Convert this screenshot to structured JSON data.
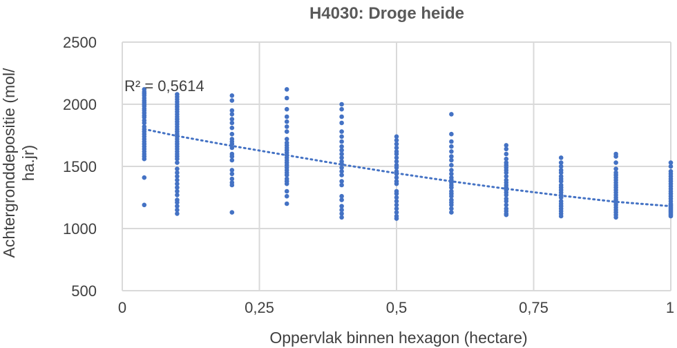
{
  "chart_data": {
    "type": "scatter",
    "title": "H4030: Droge heide",
    "xlabel": "Oppervlak binnen hexagon (hectare)",
    "ylabel_lines": [
      "Achtergronddepositie (mol/",
      "ha.jr)"
    ],
    "xlim": [
      0,
      1
    ],
    "ylim": [
      500,
      2500
    ],
    "x_ticks": [
      0,
      0.25,
      0.5,
      0.75,
      1
    ],
    "x_tick_labels": [
      "0",
      "0,25",
      "0,5",
      "0,75",
      "1"
    ],
    "y_ticks": [
      500,
      1000,
      1500,
      2000,
      2500
    ],
    "y_tick_labels": [
      "500",
      "1000",
      "1500",
      "2000",
      "2500"
    ],
    "grid": true,
    "r_squared_label": "R² = 0,5614",
    "trendline": {
      "x": [
        0.04,
        0.1,
        0.2,
        0.3,
        0.4,
        0.5,
        0.6,
        0.7,
        0.8,
        0.9,
        1.0
      ],
      "y": [
        1800,
        1745,
        1665,
        1590,
        1515,
        1445,
        1380,
        1320,
        1265,
        1215,
        1180
      ]
    },
    "series": [
      {
        "color": "#4472c4",
        "columns": [
          {
            "x": 0.04,
            "y": [
              2120,
              2100,
              2085,
              2070,
              2050,
              2030,
              2015,
              2000,
              1985,
              1965,
              1950,
              1930,
              1910,
              1895,
              1870,
              1850,
              1820,
              1800,
              1780,
              1760,
              1740,
              1720,
              1700,
              1680,
              1660,
              1640,
              1620,
              1600,
              1580,
              1560,
              1410,
              1190
            ]
          },
          {
            "x": 0.1,
            "y": [
              2080,
              2060,
              2040,
              2020,
              2000,
              1980,
              1960,
              1940,
              1920,
              1900,
              1880,
              1860,
              1840,
              1820,
              1800,
              1780,
              1760,
              1740,
              1720,
              1700,
              1680,
              1660,
              1640,
              1620,
              1600,
              1580,
              1560,
              1530,
              1480,
              1450,
              1420,
              1390,
              1360,
              1330,
              1300,
              1270,
              1230,
              1210,
              1180,
              1150,
              1120
            ]
          },
          {
            "x": 0.2,
            "y": [
              2070,
              2030,
              1950,
              1920,
              1880,
              1850,
              1810,
              1760,
              1720,
              1700,
              1680,
              1650,
              1600,
              1580,
              1550,
              1470,
              1440,
              1400,
              1370,
              1350,
              1130
            ]
          },
          {
            "x": 0.3,
            "y": [
              2120,
              2050,
              1960,
              1900,
              1860,
              1820,
              1780,
              1720,
              1690,
              1670,
              1650,
              1630,
              1610,
              1590,
              1570,
              1550,
              1530,
              1510,
              1490,
              1470,
              1450,
              1430,
              1400,
              1380,
              1360,
              1300,
              1260,
              1200
            ]
          },
          {
            "x": 0.4,
            "y": [
              2000,
              1960,
              1900,
              1850,
              1780,
              1740,
              1700,
              1660,
              1630,
              1600,
              1570,
              1540,
              1520,
              1490,
              1460,
              1430,
              1380,
              1350,
              1260,
              1230,
              1180,
              1150,
              1120,
              1090
            ]
          },
          {
            "x": 0.5,
            "y": [
              1740,
              1710,
              1680,
              1650,
              1620,
              1600,
              1570,
              1540,
              1510,
              1490,
              1460,
              1440,
              1410,
              1380,
              1360,
              1300,
              1280,
              1250,
              1220,
              1190,
              1160,
              1130,
              1100,
              1080
            ]
          },
          {
            "x": 0.6,
            "y": [
              1920,
              1760,
              1700,
              1660,
              1620,
              1580,
              1550,
              1510,
              1470,
              1440,
              1410,
              1390,
              1370,
              1350,
              1330,
              1300,
              1280,
              1260,
              1230,
              1210,
              1190,
              1160,
              1130
            ]
          },
          {
            "x": 0.7,
            "y": [
              1670,
              1640,
              1600,
              1560,
              1530,
              1510,
              1490,
              1470,
              1450,
              1420,
              1390,
              1370,
              1350,
              1330,
              1310,
              1290,
              1270,
              1240,
              1220,
              1190,
              1160,
              1140,
              1120,
              1110
            ]
          },
          {
            "x": 0.8,
            "y": [
              1570,
              1530,
              1500,
              1470,
              1450,
              1420,
              1400,
              1380,
              1350,
              1330,
              1310,
              1290,
              1270,
              1250,
              1220,
              1200,
              1180,
              1160,
              1140,
              1120,
              1100
            ]
          },
          {
            "x": 0.9,
            "y": [
              1600,
              1580,
              1530,
              1480,
              1450,
              1430,
              1410,
              1390,
              1370,
              1350,
              1330,
              1310,
              1290,
              1270,
              1250,
              1230,
              1210,
              1190,
              1170,
              1150,
              1130,
              1110,
              1090
            ]
          },
          {
            "x": 1.0,
            "y": [
              1530,
              1500,
              1460,
              1440,
              1420,
              1400,
              1380,
              1360,
              1340,
              1320,
              1300,
              1280,
              1260,
              1240,
              1220,
              1200,
              1190,
              1180,
              1170,
              1160,
              1150,
              1140,
              1130,
              1120,
              1110,
              1100
            ]
          }
        ]
      }
    ]
  }
}
